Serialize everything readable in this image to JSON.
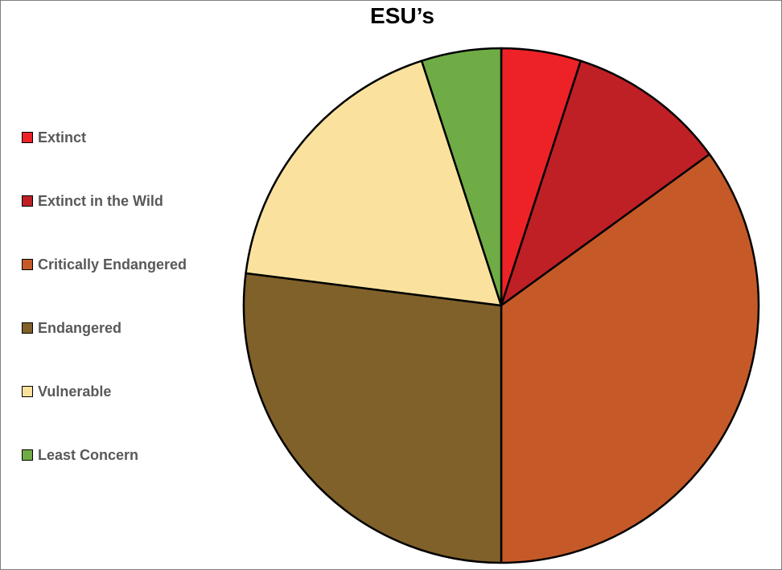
{
  "chart_data": {
    "type": "pie",
    "title": "ESU’s",
    "categories": [
      "Extinct",
      "Extinct in the Wild",
      "Critically Endangered",
      "Endangered",
      "Vulnerable",
      "Least Concern"
    ],
    "values": [
      5,
      10,
      35,
      27,
      18,
      5
    ],
    "colors": [
      "#ED2227",
      "#BE2026",
      "#C55A28",
      "#7F6129",
      "#FAE29E",
      "#6FAC46"
    ],
    "legend_position": "left",
    "start_angle": "12 o'clock",
    "direction": "clockwise"
  }
}
